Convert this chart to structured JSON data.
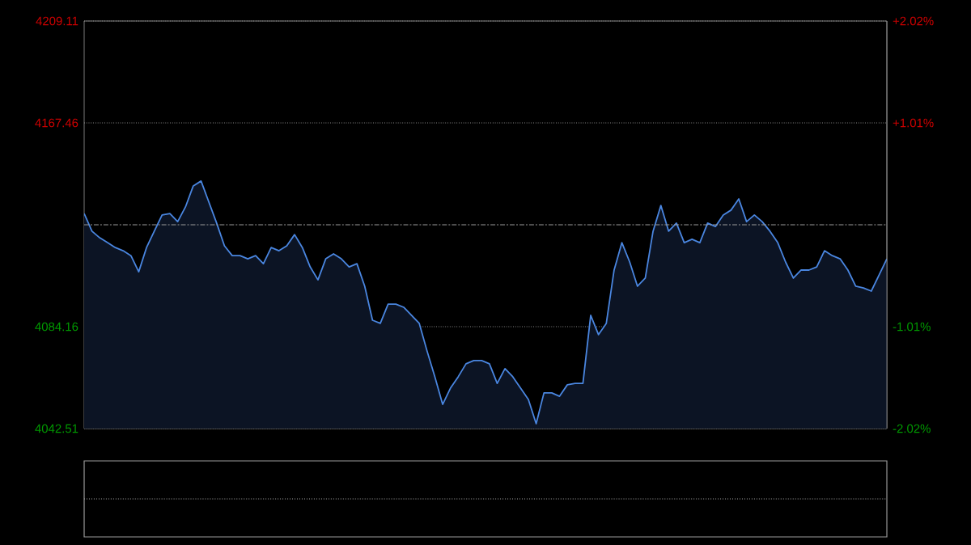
{
  "chart_data": {
    "type": "area",
    "color": "#4a86e0",
    "categories": [
      null,
      null,
      null,
      null,
      null,
      null,
      null,
      null,
      null,
      null,
      null,
      null,
      null,
      null,
      null,
      null,
      null,
      null,
      null,
      null,
      null,
      null,
      null,
      null,
      null,
      null,
      null,
      null,
      null,
      null,
      null,
      null,
      null,
      null,
      null,
      null,
      null,
      null,
      null,
      null,
      null,
      null,
      null,
      null,
      null,
      null,
      null,
      null,
      null,
      null,
      null,
      null,
      null,
      null,
      null,
      null,
      null,
      null,
      null,
      null,
      null,
      null,
      null,
      null,
      null,
      null,
      null,
      null,
      null,
      null,
      null,
      null,
      null,
      null,
      null,
      null,
      null,
      null,
      null,
      null,
      null,
      null,
      null,
      null,
      null,
      null,
      null,
      null,
      null,
      null,
      null,
      null,
      null,
      null,
      null,
      null,
      null,
      null,
      null,
      null,
      null,
      null,
      null,
      null
    ],
    "values": [
      4130.4,
      4123.2,
      4120.5,
      4118.5,
      4116.5,
      4115.2,
      4113.2,
      4106.6,
      4116.5,
      4123.2,
      4129.8,
      4130.4,
      4127.1,
      4133.1,
      4141.7,
      4143.7,
      4135.1,
      4126.5,
      4117.2,
      4113.2,
      4113.2,
      4111.9,
      4113.2,
      4109.9,
      4116.5,
      4115.2,
      4117.2,
      4121.8,
      4116.5,
      4108.6,
      4103.3,
      4111.9,
      4113.9,
      4111.9,
      4108.6,
      4109.9,
      4100.7,
      4086.8,
      4085.5,
      4093.4,
      4093.4,
      4092.1,
      4088.8,
      4085.5,
      4074.2,
      4063.7,
      4052.4,
      4059.0,
      4063.7,
      4069.0,
      4070.3,
      4070.3,
      4069.0,
      4061.0,
      4067.0,
      4063.7,
      4059.0,
      4054.4,
      4044.5,
      4057.1,
      4057.1,
      4055.7,
      4060.4,
      4061.0,
      4061.0,
      4088.8,
      4080.9,
      4085.5,
      4107.3,
      4118.5,
      4110.6,
      4100.7,
      4104.0,
      4123.2,
      4133.7,
      4123.2,
      4126.5,
      4118.5,
      4119.9,
      4118.5,
      4126.5,
      4125.1,
      4129.8,
      4131.8,
      4136.4,
      4127.1,
      4129.8,
      4127.1,
      4123.2,
      4118.5,
      4110.6,
      4104.0,
      4107.3,
      4107.3,
      4108.6,
      4115.2,
      4113.2,
      4111.9,
      4107.3,
      4100.7,
      4100.0,
      4098.7,
      4105.3,
      4111.9
    ],
    "ylim": [
      4042.51,
      4209.11
    ],
    "yticks": [
      4042.51,
      4084.16,
      4167.46,
      4209.11
    ],
    "y2lim": [
      -2.02,
      2.02
    ],
    "y2ticks": [
      {
        "value": -2.02,
        "label": "-2.02%"
      },
      {
        "value": -1.01,
        "label": "-1.01%"
      },
      {
        "value": 1.01,
        "label": "+1.01%"
      },
      {
        "value": 2.02,
        "label": "+2.02%"
      }
    ],
    "grid": "y",
    "tick_labels": "y",
    "ref_lines": [
      {
        "axis": "y",
        "value": 4125.81,
        "line_style": "dashed"
      }
    ]
  }
}
